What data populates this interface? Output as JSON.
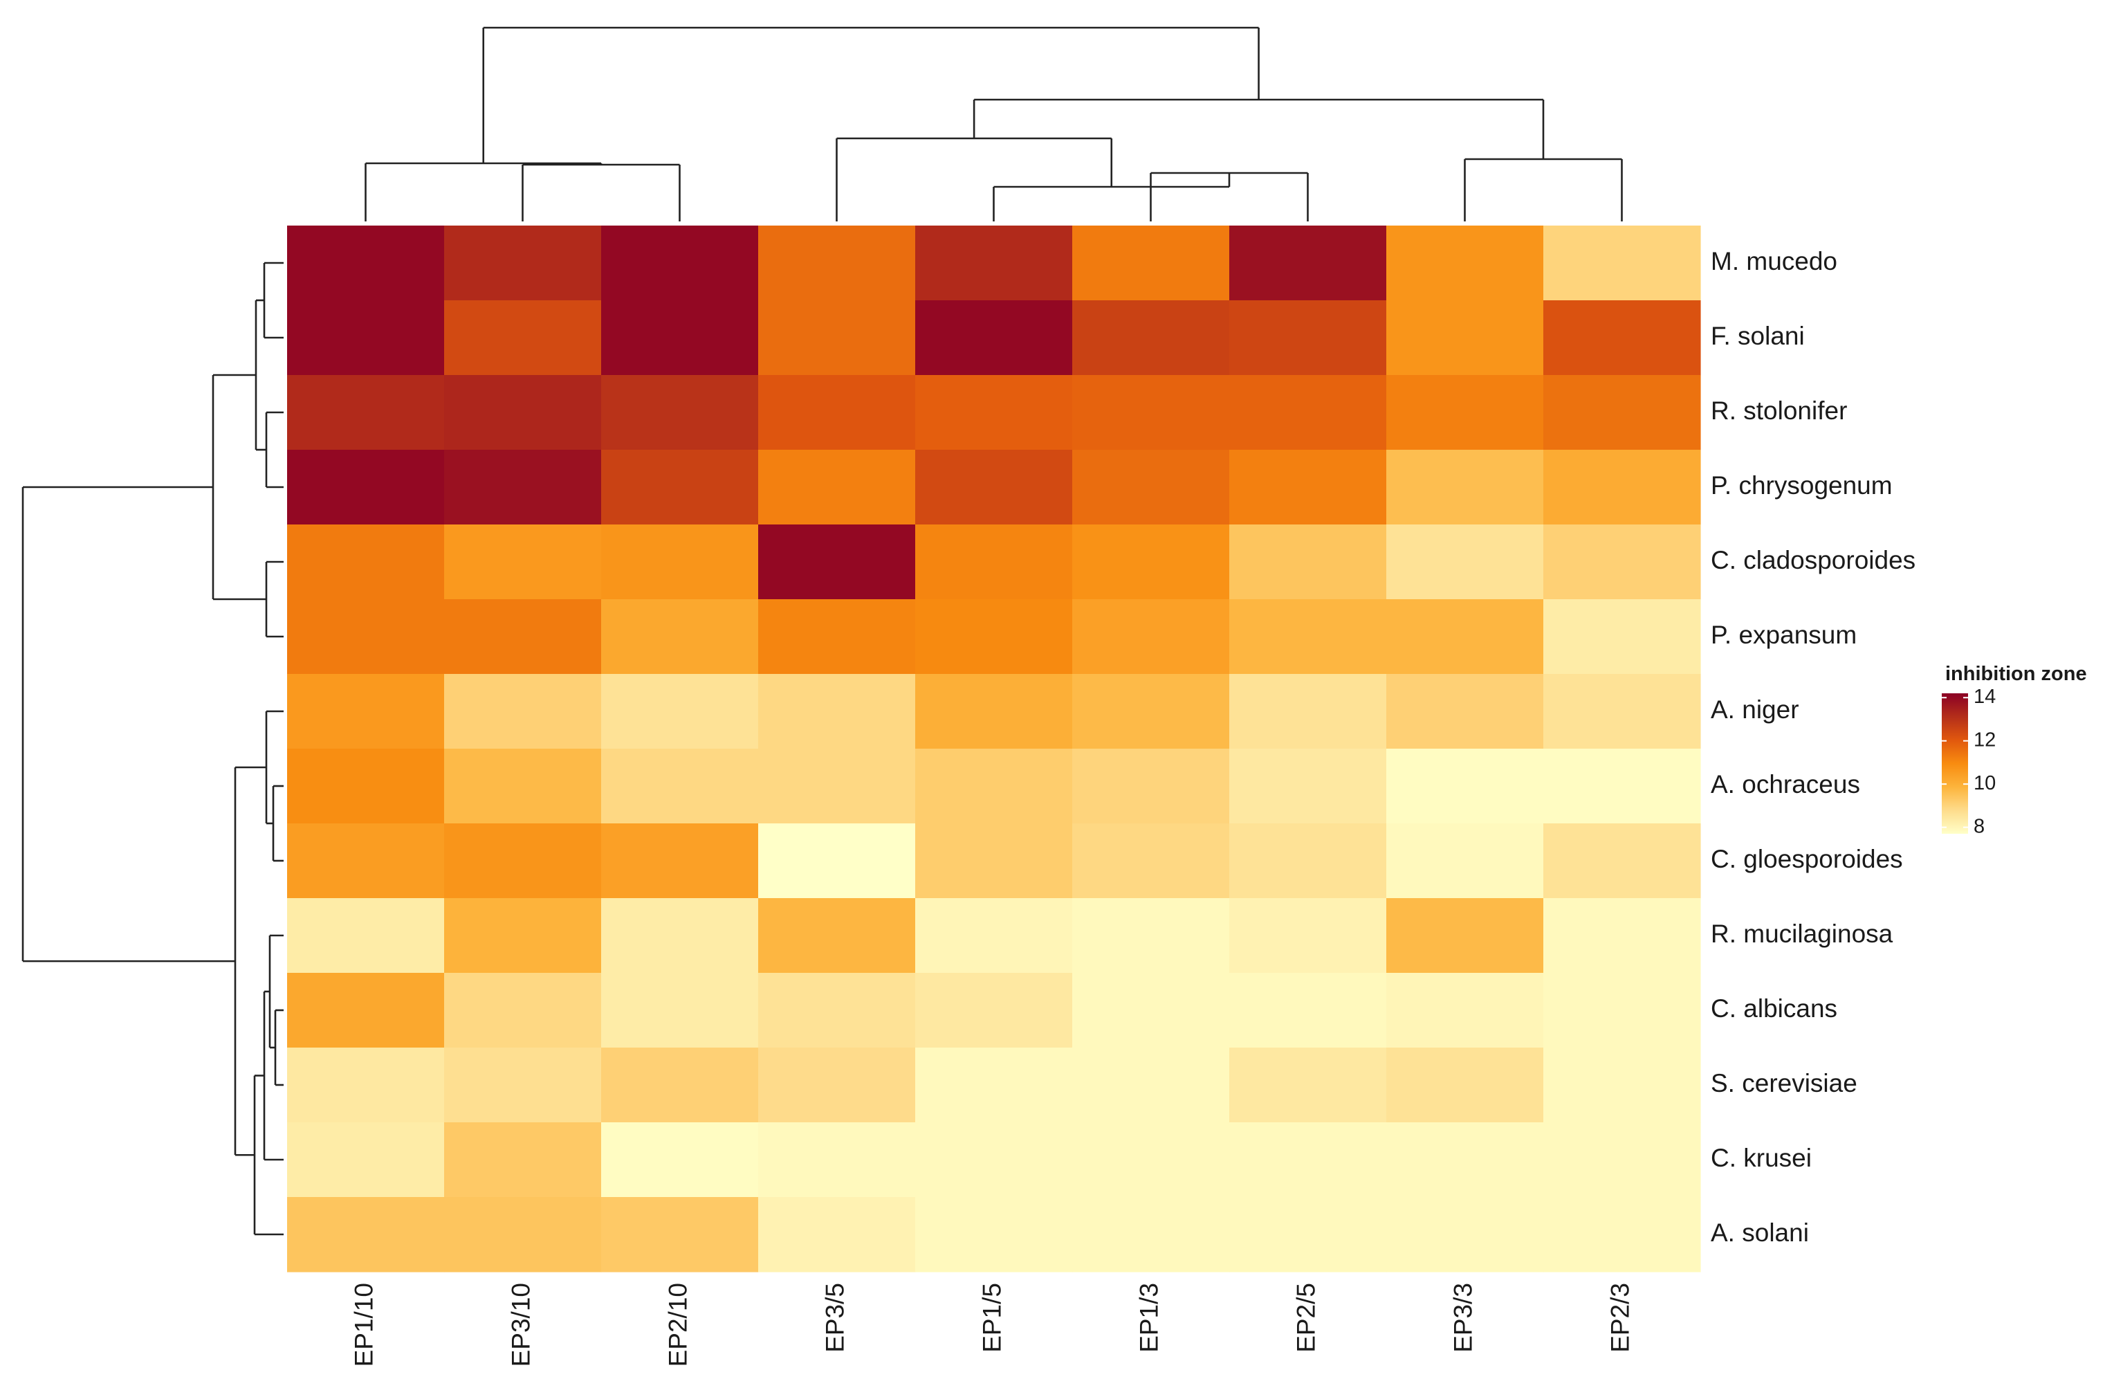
{
  "chart_data": {
    "type": "heatmap",
    "columns": [
      "EP1/10",
      "EP3/10",
      "EP2/10",
      "EP3/5",
      "EP1/5",
      "EP1/3",
      "EP2/5",
      "EP3/3",
      "EP2/3"
    ],
    "rows": [
      "M. mucedo",
      "F. solani",
      "R. stolonifer",
      "P. chrysogenum",
      "C. cladosporoides",
      "P. expansum",
      "A. niger",
      "A. ochraceus",
      "C. gloesporoides",
      "R. mucilaginosa",
      "C. albicans",
      "S. cerevisiae",
      "C. krusei",
      "A. solani"
    ],
    "values": [
      [
        14.0,
        13.2,
        14.0,
        11.6,
        13.2,
        11.3,
        13.8,
        10.7,
        9.0
      ],
      [
        14.0,
        12.4,
        14.0,
        11.6,
        14.0,
        12.6,
        12.5,
        10.7,
        12.2
      ],
      [
        13.2,
        13.3,
        13.0,
        12.1,
        11.9,
        11.8,
        11.8,
        11.2,
        11.5
      ],
      [
        14.0,
        13.8,
        12.6,
        11.2,
        12.4,
        11.6,
        11.2,
        9.6,
        10.1
      ],
      [
        11.3,
        10.6,
        10.7,
        14.0,
        11.1,
        10.8,
        9.4,
        8.6,
        9.1
      ],
      [
        11.3,
        11.3,
        10.2,
        11.1,
        11.0,
        10.4,
        9.8,
        9.8,
        8.3
      ],
      [
        10.6,
        9.1,
        8.6,
        8.9,
        10.0,
        9.7,
        8.6,
        9.1,
        8.6
      ],
      [
        10.9,
        9.7,
        8.9,
        8.9,
        9.2,
        9.0,
        8.4,
        7.8,
        7.8
      ],
      [
        10.5,
        10.7,
        10.4,
        7.7,
        9.2,
        8.9,
        8.6,
        7.9,
        8.6
      ],
      [
        8.3,
        9.9,
        8.3,
        9.8,
        8.0,
        7.9,
        8.1,
        9.7,
        7.9
      ],
      [
        10.2,
        8.9,
        8.3,
        8.6,
        8.4,
        7.9,
        7.9,
        8.0,
        7.9
      ],
      [
        8.4,
        8.7,
        9.1,
        8.8,
        7.9,
        7.9,
        8.4,
        8.6,
        7.9
      ],
      [
        8.3,
        9.3,
        7.8,
        7.9,
        7.9,
        7.9,
        7.9,
        7.9,
        7.9
      ],
      [
        9.4,
        9.4,
        9.3,
        8.1,
        7.9,
        7.9,
        7.9,
        7.9,
        7.9
      ]
    ],
    "colorbar": {
      "title": "inhibition zone",
      "ticks": [
        14,
        12,
        10,
        8
      ],
      "min": 7.7,
      "max": 14.2,
      "colors": [
        "#FFFFC8",
        "#FEDC8C",
        "#FDB43C",
        "#F88C10",
        "#E1580E",
        "#B42E1A",
        "#8B0025"
      ]
    },
    "dendrograms": {
      "columns": true,
      "rows": true
    }
  }
}
